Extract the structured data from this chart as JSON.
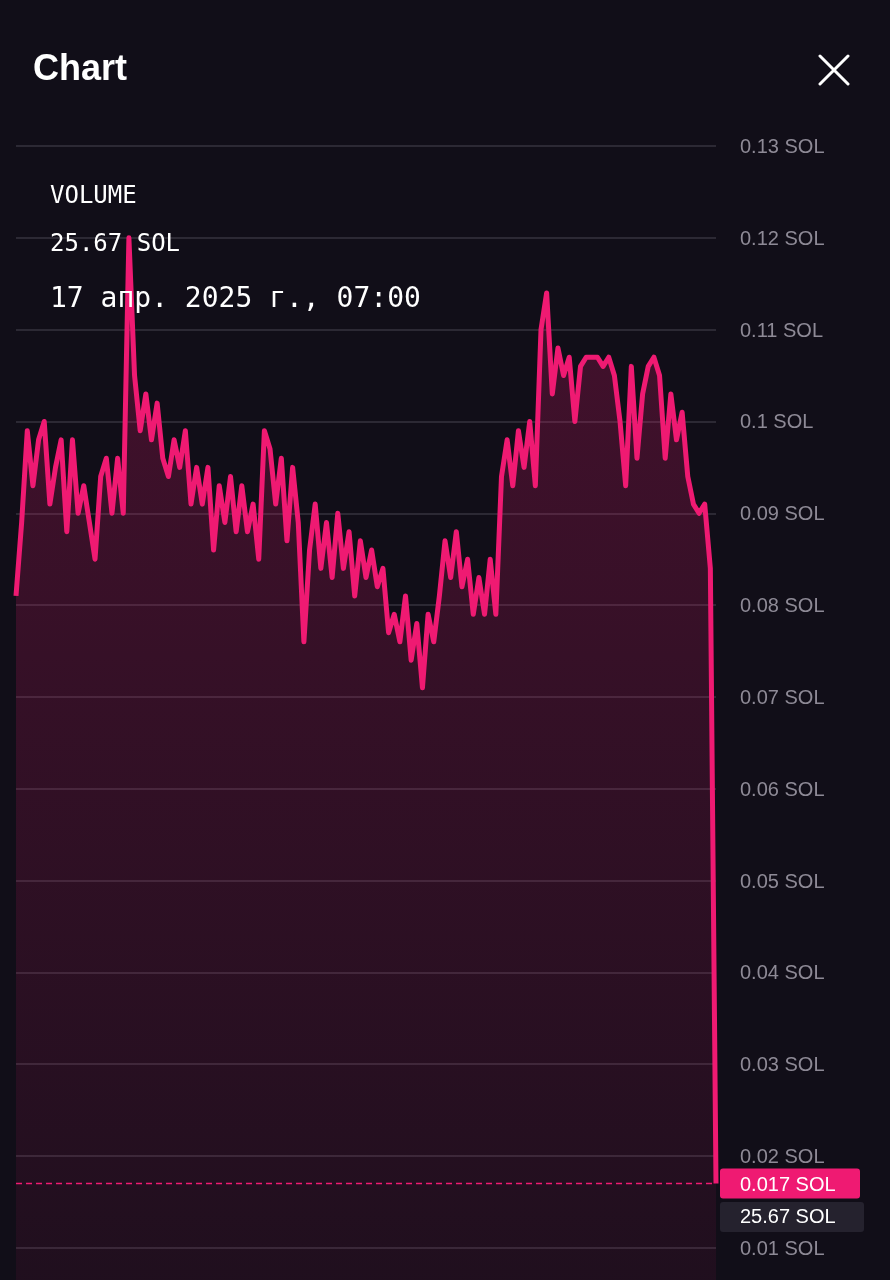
{
  "chart_data": {
    "type": "area",
    "title": "Chart",
    "annotations": [
      "VOLUME",
      "25.67 SOL",
      "17 апр. 2025 г., 07:00",
      "25.67 SOL"
    ],
    "categories": [
      null,
      null,
      null,
      null,
      null,
      null,
      null,
      null,
      null,
      null,
      null,
      null,
      null,
      null,
      null,
      null,
      null,
      null,
      null,
      null,
      null,
      null,
      null,
      null,
      null,
      null,
      null,
      null,
      null,
      null,
      null,
      null,
      null,
      null,
      null,
      null,
      null,
      null,
      null,
      null,
      null,
      null,
      null,
      null,
      null,
      null,
      null,
      null,
      null,
      null,
      null,
      null,
      null,
      null,
      null,
      null,
      null,
      null,
      null,
      null,
      null,
      null,
      null,
      null,
      null,
      null,
      null,
      null,
      null,
      null,
      null,
      null,
      null,
      null,
      null,
      null,
      null,
      null,
      null,
      null,
      null,
      null,
      null,
      null,
      null,
      null,
      null,
      null,
      null,
      null,
      null,
      null,
      null,
      null,
      null,
      null,
      null,
      null,
      null,
      null,
      null,
      null,
      null,
      null,
      null,
      null,
      null,
      null,
      null,
      null,
      null,
      null,
      null,
      null,
      null,
      null,
      null,
      null,
      null,
      null,
      null,
      null,
      null,
      null,
      null
    ],
    "series": [
      {
        "color": "#ef1a72",
        "values": [
          0.081,
          0.089,
          0.099,
          0.093,
          0.098,
          0.1,
          0.091,
          0.095,
          0.098,
          0.088,
          0.098,
          0.09,
          0.093,
          0.089,
          0.085,
          0.094,
          0.096,
          0.09,
          0.096,
          0.09,
          0.12,
          0.105,
          0.099,
          0.103,
          0.098,
          0.102,
          0.096,
          0.094,
          0.098,
          0.095,
          0.099,
          0.091,
          0.095,
          0.091,
          0.095,
          0.086,
          0.093,
          0.089,
          0.094,
          0.088,
          0.093,
          0.088,
          0.091,
          0.085,
          0.099,
          0.097,
          0.091,
          0.096,
          0.087,
          0.095,
          0.089,
          0.076,
          0.086,
          0.091,
          0.084,
          0.089,
          0.083,
          0.09,
          0.084,
          0.088,
          0.081,
          0.087,
          0.083,
          0.086,
          0.082,
          0.084,
          0.077,
          0.079,
          0.076,
          0.081,
          0.074,
          0.078,
          0.071,
          0.079,
          0.076,
          0.081,
          0.087,
          0.083,
          0.088,
          0.082,
          0.085,
          0.079,
          0.083,
          0.079,
          0.085,
          0.079,
          0.094,
          0.098,
          0.093,
          0.099,
          0.095,
          0.1,
          0.093,
          0.11,
          0.114,
          0.103,
          0.108,
          0.105,
          0.107,
          0.1,
          0.106,
          0.107,
          0.107,
          0.107,
          0.106,
          0.107,
          0.105,
          0.1,
          0.093,
          0.106,
          0.096,
          0.103,
          0.106,
          0.107,
          0.105,
          0.096,
          0.103,
          0.098,
          0.101,
          0.094,
          0.091,
          0.09,
          0.091,
          0.084,
          0.017
        ]
      }
    ],
    "ylim": [
      0.0065,
      0.13
    ],
    "yticks": [
      {
        "value": 0.01,
        "label": "0.01 SOL"
      },
      {
        "value": 0.02,
        "label": "0.02 SOL"
      },
      {
        "value": 0.03,
        "label": "0.03 SOL"
      },
      {
        "value": 0.04,
        "label": "0.04 SOL"
      },
      {
        "value": 0.05,
        "label": "0.05 SOL"
      },
      {
        "value": 0.06,
        "label": "0.06 SOL"
      },
      {
        "value": 0.07,
        "label": "0.07 SOL"
      },
      {
        "value": 0.08,
        "label": "0.08 SOL"
      },
      {
        "value": 0.09,
        "label": "0.09 SOL"
      },
      {
        "value": 0.1,
        "label": "0.1 SOL"
      },
      {
        "value": 0.11,
        "label": "0.11 SOL"
      },
      {
        "value": 0.12,
        "label": "0.12 SOL"
      },
      {
        "value": 0.13,
        "label": "0.13 SOL"
      }
    ],
    "grid": "y",
    "ref_lines": [
      {
        "axis": "y",
        "value": 0.017,
        "label": "0.017 SOL",
        "color": "#ef1a72",
        "line_style": "dashed"
      }
    ]
  }
}
